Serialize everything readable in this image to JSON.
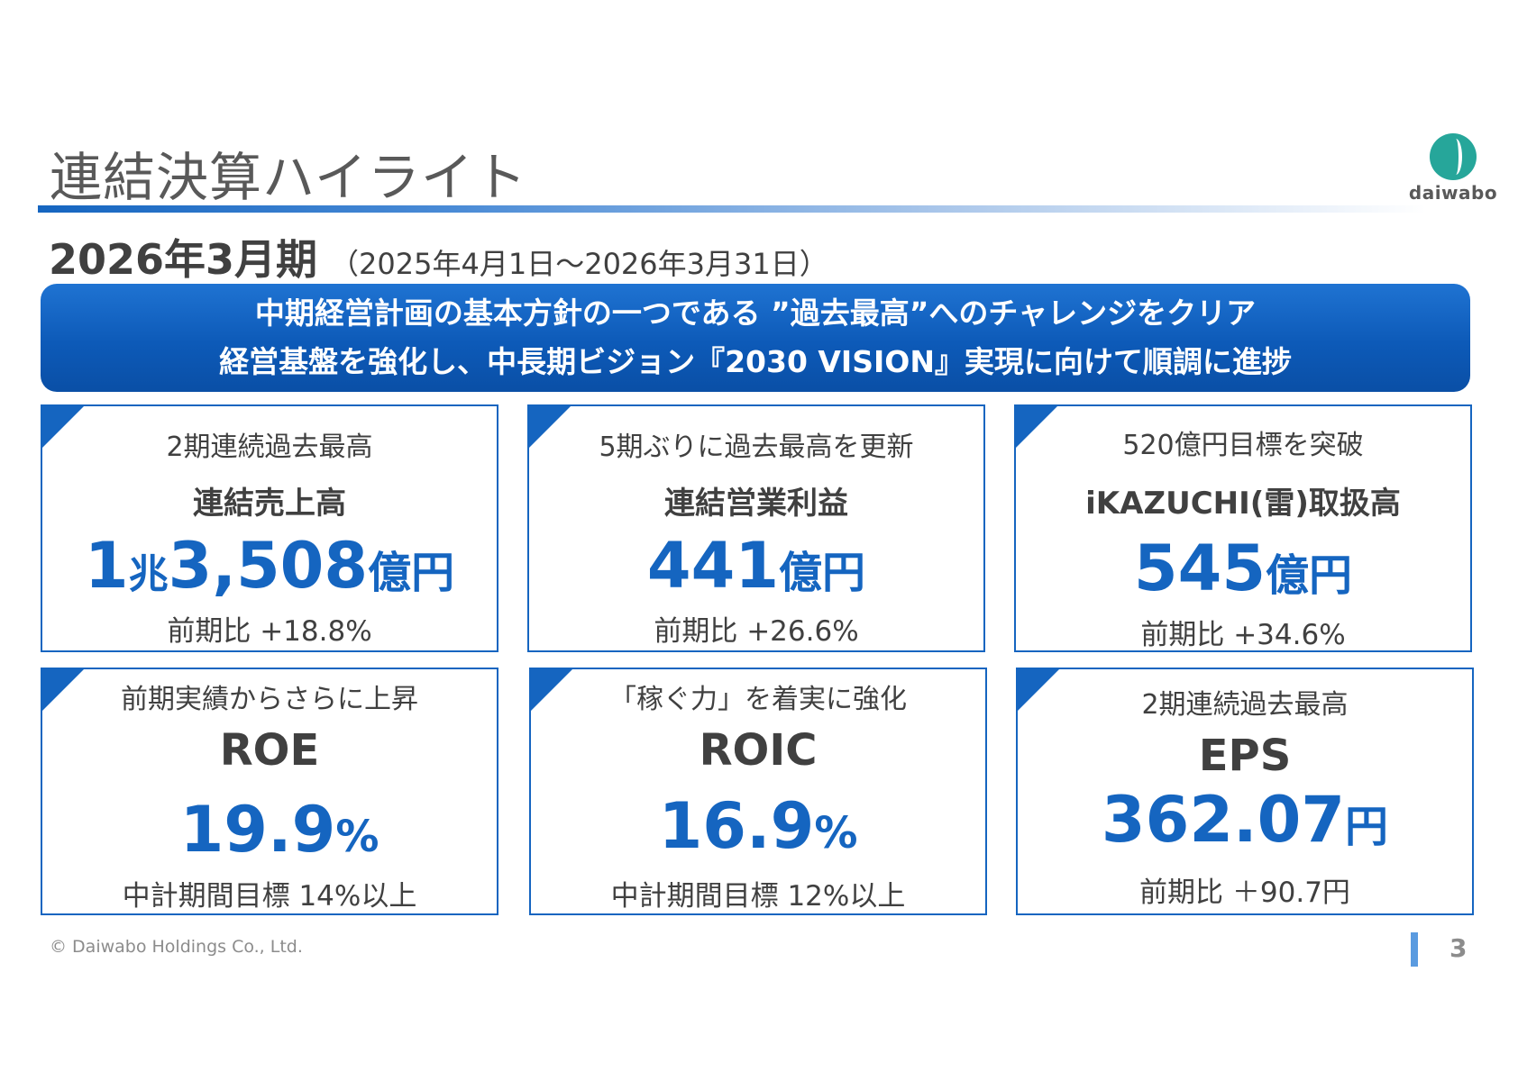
{
  "header": {
    "title": "連結決算ハイライト",
    "logo_text": "daiwabo",
    "period_main": "2026年3月期",
    "period_range": "（2025年4月1日～2026年3月31日）"
  },
  "banner": {
    "line1": "中期経営計画の基本方針の一つである ”過去最高”へのチャレンジをクリア",
    "line2": "経営基盤を強化し、中長期ビジョン『2030 VISION』実現に向けて順調に進捗"
  },
  "cards": [
    {
      "subtitle": "2期連続過去最高",
      "label": "連結売上高",
      "value_parts": [
        "1",
        "兆",
        "3,508",
        "億円"
      ],
      "footnote": "前期比 +18.8%"
    },
    {
      "subtitle": "5期ぶりに過去最高を更新",
      "label": "連結営業利益",
      "value_num": "441",
      "value_unit": "億円",
      "footnote": "前期比 +26.6%"
    },
    {
      "subtitle": "520億円目標を突破",
      "label": "iKAZUCHI(雷)取扱高",
      "value_num": "545",
      "value_unit": "億円",
      "footnote": "前期比 +34.6%"
    },
    {
      "subtitle": "前期実績からさらに上昇",
      "label": "ROE",
      "value_num": "19.9",
      "value_unit": "%",
      "footnote": "中計期間目標 14%以上"
    },
    {
      "subtitle": "「稼ぐ力」を着実に強化",
      "label": "ROIC",
      "value_num": "16.9",
      "value_unit": "%",
      "footnote": "中計期間目標 12%以上"
    },
    {
      "subtitle": "2期連続過去最高",
      "label": "EPS",
      "value_num": "362.07",
      "value_unit": "円",
      "footnote": "前期比 ＋90.7円"
    }
  ],
  "footer": {
    "copyright": "© Daiwabo Holdings Co., Ltd.",
    "page_number": "3"
  },
  "colors": {
    "accent": "#1565c0",
    "banner": "#0d5ab8",
    "text": "#404040"
  }
}
